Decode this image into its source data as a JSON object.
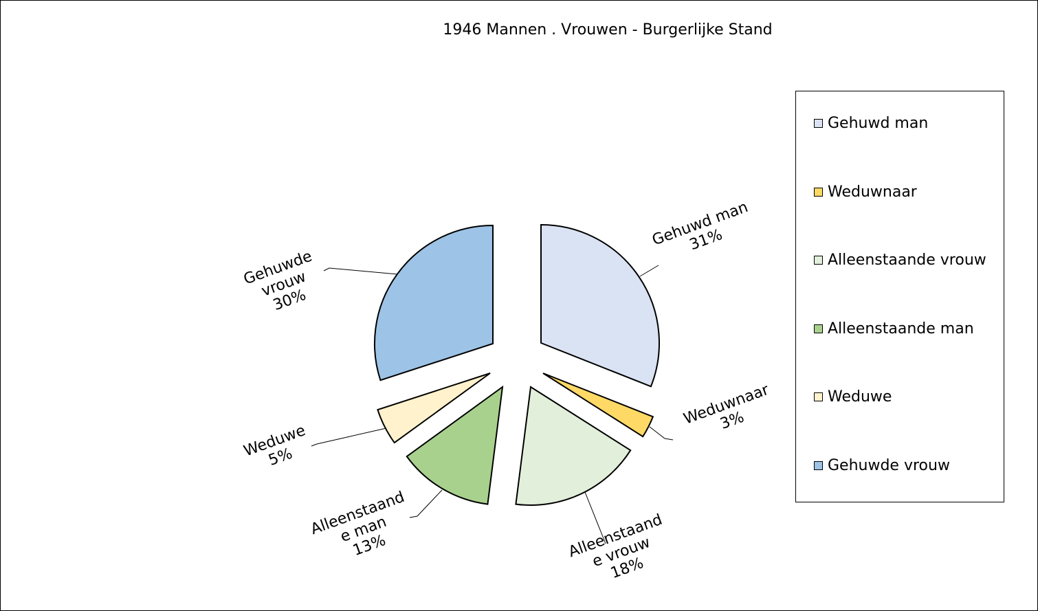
{
  "chart_data": {
    "type": "pie",
    "exploded": true,
    "title": "1946 Mannen . Vrouwen - Burgerlijke Stand",
    "legend_position": "right",
    "slices": [
      {
        "label": "Gehuwd man",
        "percent": 31,
        "label_lines": [
          "Gehuwd man",
          "31%"
        ],
        "color": "#dae3f3"
      },
      {
        "label": "Weduwnaar",
        "percent": 3,
        "label_lines": [
          "Weduwnaar",
          "3%"
        ],
        "color": "#ffd966"
      },
      {
        "label": "Alleenstaande vrouw",
        "percent": 18,
        "label_lines": [
          "Alleenstaand",
          "e vrouw",
          "18%"
        ],
        "color": "#e2efda"
      },
      {
        "label": "Alleenstaande man",
        "percent": 13,
        "label_lines": [
          "Alleenstaand",
          "e man",
          "13%"
        ],
        "color": "#a9d18e"
      },
      {
        "label": "Weduwe",
        "percent": 5,
        "label_lines": [
          "Weduwe",
          "5%"
        ],
        "color": "#fff2cc"
      },
      {
        "label": "Gehuwde vrouw",
        "percent": 30,
        "label_lines": [
          "Gehuwde",
          "vrouw",
          "30%"
        ],
        "color": "#9dc3e6"
      }
    ]
  }
}
